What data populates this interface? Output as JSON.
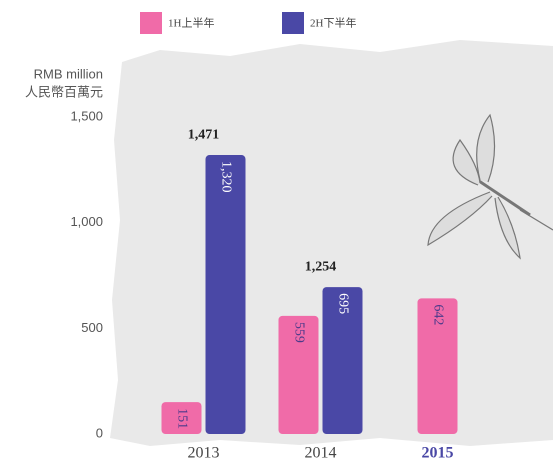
{
  "chart_data": {
    "type": "bar",
    "ylabel": "RMB million",
    "ylabel_zh": "人民幣百萬元",
    "categories": [
      "2013",
      "2014",
      "2015"
    ],
    "series": [
      {
        "name": "1H上半年",
        "color": "#f06ba8",
        "values": [
          151,
          559,
          642
        ]
      },
      {
        "name": "2H下半年",
        "color": "#4a48a6",
        "values": [
          1320,
          695,
          null
        ],
        "value_labels": [
          "1,320",
          "695",
          null
        ]
      }
    ],
    "totals": {
      "values": [
        1471,
        1254,
        null
      ],
      "value_labels": [
        "1,471",
        "1,254",
        null
      ]
    },
    "ylim": [
      0,
      1500
    ],
    "yticks": [
      0,
      500,
      {
        "value": 1000,
        "label": "1,000"
      },
      {
        "value": 1500,
        "label": "1,500"
      }
    ],
    "legend": "top-left"
  }
}
